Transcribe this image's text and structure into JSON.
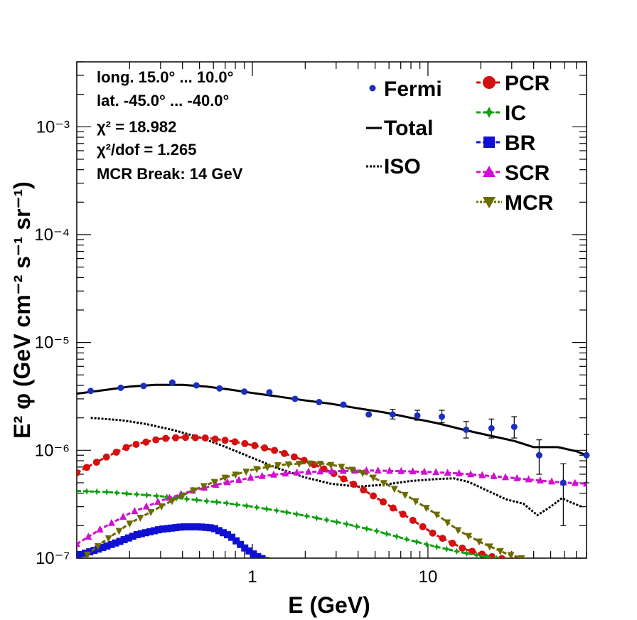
{
  "chart_data": {
    "type": "line",
    "xlabel": "E (GeV)",
    "ylabel": "E² φ (GeV cm⁻² s⁻¹ sr⁻¹)",
    "xscale": "log",
    "yscale": "log",
    "xlim": [
      0.1,
      80
    ],
    "ylim": [
      1e-07,
      0.004
    ],
    "x_tick_labels": [
      "1",
      "10"
    ],
    "y_tick_labels": [
      "10⁻⁷",
      "10⁻⁶",
      "10⁻⁵",
      "10⁻⁴",
      "10⁻³"
    ],
    "info": {
      "long": "long. 15.0° ... 10.0°",
      "lat": "lat. -45.0° ... -40.0°",
      "chi2_label": "χ² = 18.982",
      "chi2dof_label": "χ²/dof = 1.265",
      "break_label": "MCR Break: 14 GeV"
    },
    "legend_left": [
      {
        "key": "fermi",
        "name": "Fermi"
      },
      {
        "key": "total",
        "name": "Total"
      },
      {
        "key": "iso",
        "name": "ISO"
      }
    ],
    "legend_right": [
      {
        "key": "pcr",
        "name": "PCR"
      },
      {
        "key": "ic",
        "name": "IC"
      },
      {
        "key": "br",
        "name": "BR"
      },
      {
        "key": "scr",
        "name": "SCR"
      },
      {
        "key": "mcr",
        "name": "MCR"
      }
    ],
    "fermi": {
      "name": "Fermi",
      "color": "#1a2fbf",
      "points": [
        {
          "x": 0.12,
          "y": 3.55e-06
        },
        {
          "x": 0.178,
          "y": 3.8e-06
        },
        {
          "x": 0.24,
          "y": 3.95e-06
        },
        {
          "x": 0.35,
          "y": 4.25e-06
        },
        {
          "x": 0.48,
          "y": 4e-06
        },
        {
          "x": 0.65,
          "y": 3.75e-06
        },
        {
          "x": 0.9,
          "y": 3.5e-06
        },
        {
          "x": 1.25,
          "y": 3.45e-06
        },
        {
          "x": 1.75,
          "y": 3e-06
        },
        {
          "x": 2.4,
          "y": 2.8e-06
        },
        {
          "x": 3.3,
          "y": 2.65e-06
        },
        {
          "x": 4.6,
          "y": 2.15e-06
        },
        {
          "x": 6.3,
          "y": 2.15e-06,
          "lo": 1.95e-06,
          "hi": 2.4e-06
        },
        {
          "x": 8.7,
          "y": 2.1e-06,
          "lo": 1.9e-06,
          "hi": 2.35e-06
        },
        {
          "x": 12,
          "y": 2.05e-06,
          "lo": 1.8e-06,
          "hi": 2.35e-06
        },
        {
          "x": 16.5,
          "y": 1.55e-06,
          "lo": 1.3e-06,
          "hi": 1.85e-06
        },
        {
          "x": 23,
          "y": 1.6e-06,
          "lo": 1.3e-06,
          "hi": 1.95e-06
        },
        {
          "x": 31,
          "y": 1.65e-06,
          "lo": 1.3e-06,
          "hi": 2.05e-06
        },
        {
          "x": 43,
          "y": 9e-07,
          "lo": 6e-07,
          "hi": 1.25e-06
        },
        {
          "x": 59,
          "y": 5e-07,
          "lo": 2e-07,
          "hi": 7.5e-07
        },
        {
          "x": 80,
          "y": 9e-07,
          "lo": 5e-07,
          "hi": 1.4e-06
        }
      ]
    },
    "series": [
      {
        "key": "total",
        "name": "Total",
        "color": "#000000",
        "style": "solid",
        "marker": "none",
        "x": [
          0.1,
          0.15,
          0.2,
          0.28,
          0.4,
          0.55,
          0.75,
          1.0,
          1.4,
          2.0,
          2.8,
          4.0,
          5.6,
          8.0,
          11,
          16,
          22,
          31,
          40,
          55,
          70,
          80
        ],
        "y": [
          3.35e-06,
          3.65e-06,
          3.9e-06,
          4.05e-06,
          4.05e-06,
          3.9e-06,
          3.65e-06,
          3.4e-06,
          3.15e-06,
          2.9e-06,
          2.7e-06,
          2.45e-06,
          2.25e-06,
          2e-06,
          1.8e-06,
          1.55e-06,
          1.38e-06,
          1.22e-06,
          1.07e-06,
          1.07e-06,
          9.8e-07,
          9e-07
        ]
      },
      {
        "key": "iso",
        "name": "ISO",
        "color": "#000000",
        "style": "dotted",
        "marker": "none",
        "x": [
          0.12,
          0.18,
          0.25,
          0.35,
          0.5,
          0.7,
          1.0,
          1.4,
          2.0,
          2.8,
          4.0,
          5.6,
          8.0,
          11,
          14,
          17,
          22,
          28,
          35,
          42,
          50,
          58,
          65,
          75
        ],
        "y": [
          2e-06,
          1.9e-06,
          1.75e-06,
          1.55e-06,
          1.32e-06,
          1.08e-06,
          8.5e-07,
          6.8e-07,
          5.6e-07,
          4.9e-07,
          4.6e-07,
          4.8e-07,
          5.2e-07,
          5.4e-07,
          5.5e-07,
          5.1e-07,
          4.2e-07,
          3.5e-07,
          3.2e-07,
          2.5e-07,
          3e-07,
          3.6e-07,
          3.3e-07,
          3e-07
        ]
      },
      {
        "key": "pcr",
        "name": "PCR",
        "color": "#d41010",
        "style": "dashed",
        "marker": "circle",
        "x": [
          0.1,
          0.15,
          0.2,
          0.3,
          0.4,
          0.55,
          0.75,
          1.0,
          1.4,
          2.0,
          2.8,
          4.0,
          5.6,
          8.0,
          11,
          16,
          22,
          30
        ],
        "y": [
          6.2e-07,
          8.8e-07,
          1.1e-06,
          1.28e-06,
          1.32e-06,
          1.3e-06,
          1.22e-06,
          1.12e-06,
          9.8e-07,
          8e-07,
          6.3e-07,
          4.6e-07,
          3.3e-07,
          2.3e-07,
          1.65e-07,
          1.22e-07,
          1.05e-07,
          9.5e-08
        ]
      },
      {
        "key": "ic",
        "name": "IC",
        "color": "#10a010",
        "style": "dashed",
        "marker": "star",
        "x": [
          0.1,
          0.15,
          0.2,
          0.3,
          0.45,
          0.7,
          1.0,
          1.5,
          2.2,
          3.3,
          5.0,
          7.5,
          11,
          16,
          24,
          32
        ],
        "y": [
          4.2e-07,
          4.1e-07,
          3.95e-07,
          3.75e-07,
          3.5e-07,
          3.25e-07,
          3e-07,
          2.7e-07,
          2.4e-07,
          2.1e-07,
          1.8e-07,
          1.5e-07,
          1.28e-07,
          1.12e-07,
          1e-07,
          9.2e-08
        ]
      },
      {
        "key": "br",
        "name": "BR",
        "color": "#1010d4",
        "style": "dashed",
        "marker": "square",
        "x": [
          0.1,
          0.13,
          0.17,
          0.22,
          0.3,
          0.4,
          0.5,
          0.6,
          0.75,
          0.9,
          1.05,
          1.2
        ],
        "y": [
          1.05e-07,
          1.2e-07,
          1.4e-07,
          1.65e-07,
          1.85e-07,
          1.95e-07,
          1.95e-07,
          1.9e-07,
          1.6e-07,
          1.25e-07,
          1.05e-07,
          9.5e-08
        ]
      },
      {
        "key": "scr",
        "name": "SCR",
        "color": "#d010d0",
        "style": "dashed",
        "marker": "triangle-up",
        "x": [
          0.1,
          0.14,
          0.2,
          0.3,
          0.45,
          0.7,
          1.0,
          1.4,
          2.0,
          3.0,
          4.5,
          7.0,
          10,
          15,
          22,
          32,
          45,
          62,
          80
        ],
        "y": [
          1.35e-07,
          1.9e-07,
          2.6e-07,
          3.4e-07,
          4.2e-07,
          5e-07,
          5.6e-07,
          6e-07,
          6.3e-07,
          6.4e-07,
          6.5e-07,
          6.4e-07,
          6.3e-07,
          6.1e-07,
          5.8e-07,
          5.5e-07,
          5.2e-07,
          5e-07,
          4.9e-07
        ]
      },
      {
        "key": "mcr",
        "name": "MCR",
        "color": "#6b6b00",
        "style": "dashed",
        "marker": "triangle-down",
        "x": [
          0.1,
          0.14,
          0.2,
          0.3,
          0.45,
          0.7,
          1.0,
          1.4,
          2.0,
          2.6,
          3.3,
          4.5,
          6.0,
          8.0,
          11,
          15,
          20,
          28,
          38,
          45
        ],
        "y": [
          9e-08,
          1.4e-07,
          2.1e-07,
          3e-07,
          4.2e-07,
          5.6e-07,
          6.6e-07,
          7.3e-07,
          7.6e-07,
          7.5e-07,
          7e-07,
          6e-07,
          4.7e-07,
          3.6e-07,
          2.6e-07,
          1.8e-07,
          1.4e-07,
          1.1e-07,
          9.5e-08,
          9e-08
        ]
      }
    ]
  }
}
